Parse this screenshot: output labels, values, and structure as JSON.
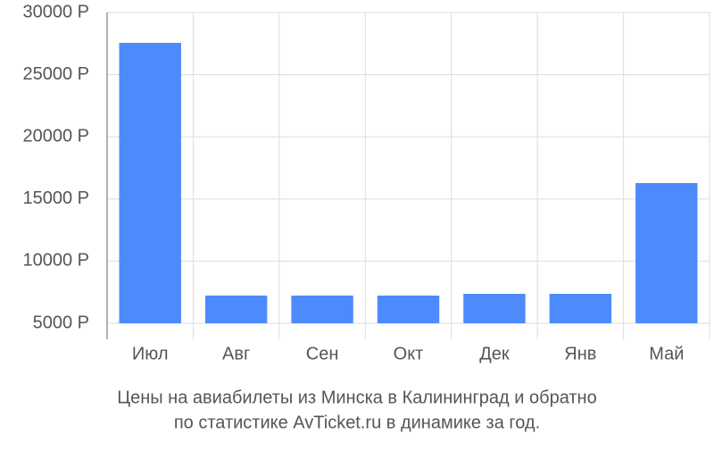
{
  "chart_data": {
    "type": "bar",
    "title": "Цены на авиабилеты из Минска в Калининград и обратно",
    "subtitle": "по статистике AvTicket.ru в динамике за год.",
    "categories": [
      "Июл",
      "Авг",
      "Сен",
      "Окт",
      "Дек",
      "Янв",
      "Май"
    ],
    "values": [
      27560,
      7230,
      7230,
      7230,
      7370,
      7370,
      16280
    ],
    "color": "#4d8bfc",
    "ylim": [
      5000,
      30000
    ],
    "yticks": [
      {
        "value": 5000,
        "label": "5000 Р"
      },
      {
        "value": 10000,
        "label": "10000 Р"
      },
      {
        "value": 15000,
        "label": "15000 Р"
      },
      {
        "value": 20000,
        "label": "20000 Р"
      },
      {
        "value": 25000,
        "label": "25000 Р"
      },
      {
        "value": 30000,
        "label": "30000 Р"
      }
    ],
    "grid": true
  }
}
